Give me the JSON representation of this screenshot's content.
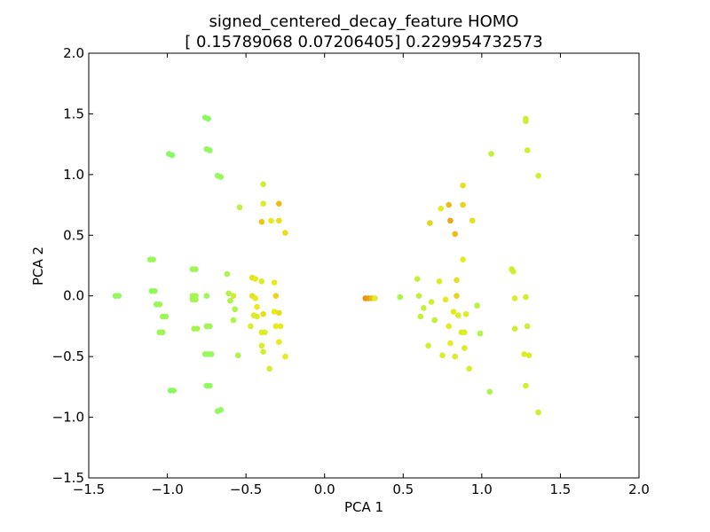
{
  "chart_data": {
    "type": "scatter",
    "title": "signed_centered_decay_feature HOMO",
    "subtitle": "[ 0.15789068  0.07206405] 0.229954732573",
    "xlabel": "PCA 1",
    "ylabel": "PCA 2",
    "xlim": [
      -1.5,
      2.0
    ],
    "ylim": [
      -1.5,
      2.0
    ],
    "xticks": [
      -1.5,
      -1.0,
      -0.5,
      0.0,
      0.5,
      1.0,
      1.5,
      2.0
    ],
    "yticks": [
      -1.5,
      -1.0,
      -0.5,
      0.0,
      0.5,
      1.0,
      1.5,
      2.0
    ],
    "xtick_labels": [
      "−1.5",
      "−1.0",
      "−0.5",
      "0.0",
      "0.5",
      "1.0",
      "1.5",
      "2.0"
    ],
    "ytick_labels": [
      "−1.5",
      "−1.0",
      "−0.5",
      "0.0",
      "0.5",
      "1.0",
      "1.5",
      "2.0"
    ],
    "grid": false,
    "legend": "none",
    "colormap": "green-yellow-orange",
    "points": [
      {
        "x": -1.33,
        "y": 0.0,
        "c": 0.15
      },
      {
        "x": -1.31,
        "y": 0.0,
        "c": 0.15
      },
      {
        "x": -1.11,
        "y": 0.3,
        "c": 0.18
      },
      {
        "x": -1.09,
        "y": 0.3,
        "c": 0.18
      },
      {
        "x": -1.1,
        "y": 0.04,
        "c": 0.15
      },
      {
        "x": -1.08,
        "y": 0.04,
        "c": 0.15
      },
      {
        "x": -1.07,
        "y": -0.07,
        "c": 0.18
      },
      {
        "x": -1.05,
        "y": -0.07,
        "c": 0.18
      },
      {
        "x": -1.03,
        "y": -0.17,
        "c": 0.2
      },
      {
        "x": -1.01,
        "y": -0.17,
        "c": 0.2
      },
      {
        "x": -1.05,
        "y": -0.3,
        "c": 0.2
      },
      {
        "x": -1.03,
        "y": -0.3,
        "c": 0.2
      },
      {
        "x": -0.99,
        "y": 1.17,
        "c": 0.1
      },
      {
        "x": -0.97,
        "y": 1.16,
        "c": 0.1
      },
      {
        "x": -0.98,
        "y": -0.78,
        "c": 0.12
      },
      {
        "x": -0.96,
        "y": -0.78,
        "c": 0.12
      },
      {
        "x": -0.84,
        "y": 0.22,
        "c": 0.2
      },
      {
        "x": -0.82,
        "y": 0.22,
        "c": 0.2
      },
      {
        "x": -0.84,
        "y": 0.0,
        "c": 0.22
      },
      {
        "x": -0.82,
        "y": 0.0,
        "c": 0.22
      },
      {
        "x": -0.84,
        "y": -0.03,
        "c": 0.22
      },
      {
        "x": -0.82,
        "y": -0.03,
        "c": 0.22
      },
      {
        "x": -0.83,
        "y": -0.27,
        "c": 0.22
      },
      {
        "x": -0.81,
        "y": -0.27,
        "c": 0.22
      },
      {
        "x": -0.76,
        "y": 1.47,
        "c": 0.12
      },
      {
        "x": -0.74,
        "y": 1.46,
        "c": 0.12
      },
      {
        "x": -0.75,
        "y": 1.21,
        "c": 0.14
      },
      {
        "x": -0.73,
        "y": 1.2,
        "c": 0.14
      },
      {
        "x": -0.75,
        "y": 0.0,
        "c": 0.2
      },
      {
        "x": -0.75,
        "y": -0.25,
        "c": 0.2
      },
      {
        "x": -0.73,
        "y": -0.25,
        "c": 0.2
      },
      {
        "x": -0.76,
        "y": -0.48,
        "c": 0.16
      },
      {
        "x": -0.74,
        "y": -0.48,
        "c": 0.16
      },
      {
        "x": -0.72,
        "y": -0.48,
        "c": 0.16
      },
      {
        "x": -0.75,
        "y": -0.74,
        "c": 0.14
      },
      {
        "x": -0.73,
        "y": -0.74,
        "c": 0.14
      },
      {
        "x": -0.68,
        "y": 0.99,
        "c": 0.16
      },
      {
        "x": -0.66,
        "y": 0.98,
        "c": 0.16
      },
      {
        "x": -0.68,
        "y": -0.95,
        "c": 0.14
      },
      {
        "x": -0.66,
        "y": -0.94,
        "c": 0.14
      },
      {
        "x": -0.62,
        "y": 0.18,
        "c": 0.25
      },
      {
        "x": -0.61,
        "y": 0.02,
        "c": 0.28
      },
      {
        "x": -0.58,
        "y": 0.0,
        "c": 0.4
      },
      {
        "x": -0.6,
        "y": -0.04,
        "c": 0.28
      },
      {
        "x": -0.57,
        "y": -0.11,
        "c": 0.26
      },
      {
        "x": -0.58,
        "y": -0.2,
        "c": 0.26
      },
      {
        "x": -0.55,
        "y": -0.49,
        "c": 0.26
      },
      {
        "x": -0.54,
        "y": 0.73,
        "c": 0.32
      },
      {
        "x": -0.46,
        "y": 0.15,
        "c": 0.55
      },
      {
        "x": -0.44,
        "y": 0.14,
        "c": 0.5
      },
      {
        "x": -0.46,
        "y": 0.0,
        "c": 0.55
      },
      {
        "x": -0.44,
        "y": -0.02,
        "c": 0.5
      },
      {
        "x": -0.43,
        "y": -0.09,
        "c": 0.5
      },
      {
        "x": -0.45,
        "y": -0.16,
        "c": 0.45
      },
      {
        "x": -0.43,
        "y": -0.17,
        "c": 0.45
      },
      {
        "x": -0.47,
        "y": -0.25,
        "c": 0.45
      },
      {
        "x": -0.4,
        "y": -0.3,
        "c": 0.45
      },
      {
        "x": -0.38,
        "y": -0.3,
        "c": 0.45
      },
      {
        "x": -0.4,
        "y": -0.41,
        "c": 0.45
      },
      {
        "x": -0.39,
        "y": -0.46,
        "c": 0.4
      },
      {
        "x": -0.39,
        "y": 0.92,
        "c": 0.4
      },
      {
        "x": -0.39,
        "y": 0.76,
        "c": 0.45
      },
      {
        "x": -0.4,
        "y": 0.61,
        "c": 0.65
      },
      {
        "x": -0.34,
        "y": 0.62,
        "c": 0.5
      },
      {
        "x": -0.29,
        "y": 0.76,
        "c": 0.7
      },
      {
        "x": -0.29,
        "y": 0.62,
        "c": 0.55
      },
      {
        "x": -0.25,
        "y": 0.52,
        "c": 0.55
      },
      {
        "x": -0.4,
        "y": 0.12,
        "c": 0.45
      },
      {
        "x": -0.39,
        "y": -0.15,
        "c": 0.55
      },
      {
        "x": -0.32,
        "y": 0.11,
        "c": 0.5
      },
      {
        "x": -0.31,
        "y": 0.0,
        "c": 0.6
      },
      {
        "x": -0.32,
        "y": -0.13,
        "c": 0.5
      },
      {
        "x": -0.29,
        "y": -0.14,
        "c": 0.55
      },
      {
        "x": -0.31,
        "y": -0.25,
        "c": 0.5
      },
      {
        "x": -0.28,
        "y": -0.25,
        "c": 0.5
      },
      {
        "x": -0.29,
        "y": -0.38,
        "c": 0.5
      },
      {
        "x": -0.25,
        "y": -0.5,
        "c": 0.5
      },
      {
        "x": -0.35,
        "y": -0.6,
        "c": 0.45
      },
      {
        "x": 0.26,
        "y": -0.02,
        "c": 0.9
      },
      {
        "x": 0.28,
        "y": -0.02,
        "c": 0.85
      },
      {
        "x": 0.3,
        "y": -0.02,
        "c": 0.7
      },
      {
        "x": 0.32,
        "y": -0.02,
        "c": 0.45
      },
      {
        "x": 0.48,
        "y": -0.01,
        "c": 0.25
      },
      {
        "x": 0.59,
        "y": 0.14,
        "c": 0.35
      },
      {
        "x": 0.6,
        "y": 0.0,
        "c": 0.35
      },
      {
        "x": 0.63,
        "y": -0.1,
        "c": 0.35
      },
      {
        "x": 0.61,
        "y": -0.17,
        "c": 0.35
      },
      {
        "x": 0.66,
        "y": -0.41,
        "c": 0.4
      },
      {
        "x": 0.67,
        "y": 0.6,
        "c": 0.6
      },
      {
        "x": 0.68,
        "y": -0.05,
        "c": 0.4
      },
      {
        "x": 0.7,
        "y": -0.2,
        "c": 0.35
      },
      {
        "x": 0.73,
        "y": 0.12,
        "c": 0.45
      },
      {
        "x": 0.74,
        "y": 0.72,
        "c": 0.5
      },
      {
        "x": 0.75,
        "y": -0.49,
        "c": 0.45
      },
      {
        "x": 0.77,
        "y": -0.03,
        "c": 0.5
      },
      {
        "x": 0.79,
        "y": -0.25,
        "c": 0.5
      },
      {
        "x": 0.8,
        "y": -0.39,
        "c": 0.5
      },
      {
        "x": 0.79,
        "y": 0.75,
        "c": 0.7
      },
      {
        "x": 0.8,
        "y": 0.62,
        "c": 0.8
      },
      {
        "x": 0.82,
        "y": -0.13,
        "c": 0.5
      },
      {
        "x": 0.83,
        "y": -0.5,
        "c": 0.45
      },
      {
        "x": 0.83,
        "y": 0.51,
        "c": 0.7
      },
      {
        "x": 0.84,
        "y": 0.13,
        "c": 0.55
      },
      {
        "x": 0.84,
        "y": 0.0,
        "c": 0.6
      },
      {
        "x": 0.85,
        "y": -0.16,
        "c": 0.45
      },
      {
        "x": 0.88,
        "y": 0.91,
        "c": 0.55
      },
      {
        "x": 0.88,
        "y": 0.75,
        "c": 0.6
      },
      {
        "x": 0.88,
        "y": 0.3,
        "c": 0.5
      },
      {
        "x": 0.87,
        "y": -0.3,
        "c": 0.45
      },
      {
        "x": 0.89,
        "y": -0.3,
        "c": 0.45
      },
      {
        "x": 0.89,
        "y": -0.43,
        "c": 0.45
      },
      {
        "x": 0.9,
        "y": -0.15,
        "c": 0.45
      },
      {
        "x": 0.92,
        "y": -0.6,
        "c": 0.45
      },
      {
        "x": 0.94,
        "y": 0.62,
        "c": 0.55
      },
      {
        "x": 0.97,
        "y": -0.08,
        "c": 0.3
      },
      {
        "x": 0.99,
        "y": -0.31,
        "c": 0.3
      },
      {
        "x": 1.05,
        "y": -0.79,
        "c": 0.25
      },
      {
        "x": 1.06,
        "y": 1.17,
        "c": 0.35
      },
      {
        "x": 1.19,
        "y": 0.22,
        "c": 0.4
      },
      {
        "x": 1.2,
        "y": 0.2,
        "c": 0.4
      },
      {
        "x": 1.21,
        "y": -0.02,
        "c": 0.45
      },
      {
        "x": 1.21,
        "y": -0.27,
        "c": 0.4
      },
      {
        "x": 1.28,
        "y": 1.46,
        "c": 0.4
      },
      {
        "x": 1.28,
        "y": 1.44,
        "c": 0.4
      },
      {
        "x": 1.29,
        "y": 1.2,
        "c": 0.42
      },
      {
        "x": 1.28,
        "y": -0.01,
        "c": 0.42
      },
      {
        "x": 1.27,
        "y": -0.48,
        "c": 0.45
      },
      {
        "x": 1.3,
        "y": -0.49,
        "c": 0.45
      },
      {
        "x": 1.29,
        "y": -0.25,
        "c": 0.4
      },
      {
        "x": 1.28,
        "y": -0.74,
        "c": 0.42
      },
      {
        "x": 1.36,
        "y": 0.99,
        "c": 0.42
      },
      {
        "x": 1.36,
        "y": -0.96,
        "c": 0.42
      }
    ]
  }
}
